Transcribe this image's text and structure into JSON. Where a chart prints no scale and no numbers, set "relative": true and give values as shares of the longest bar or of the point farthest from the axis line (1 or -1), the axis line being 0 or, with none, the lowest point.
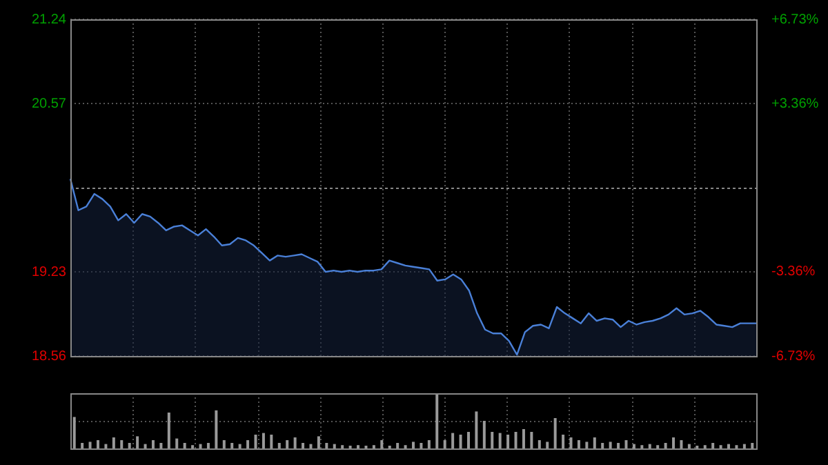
{
  "chart_data": [
    {
      "type": "area",
      "categories": [
        null,
        null,
        null,
        null,
        null,
        null,
        null,
        null,
        null,
        null,
        null,
        null,
        null,
        null,
        null,
        null,
        null,
        null,
        null,
        null,
        null,
        null,
        null,
        null,
        null,
        null,
        null,
        null,
        null,
        null,
        null,
        null,
        null,
        null,
        null,
        null,
        null,
        null,
        null,
        null,
        null,
        null,
        null,
        null,
        null,
        null,
        null,
        null,
        null,
        null,
        null,
        null,
        null,
        null,
        null,
        null,
        null,
        null,
        null,
        null,
        null,
        null,
        null,
        null,
        null,
        null,
        null,
        null,
        null,
        null,
        null,
        null,
        null,
        null,
        null,
        null,
        null,
        null,
        null,
        null,
        null,
        null,
        null,
        null,
        null,
        null,
        null
      ],
      "series": [
        {
          "color": "#4a80d8",
          "values": [
            19.97,
            19.72,
            19.75,
            19.85,
            19.81,
            19.75,
            19.64,
            19.69,
            19.62,
            19.69,
            19.67,
            19.62,
            19.56,
            19.59,
            19.6,
            19.56,
            19.52,
            19.57,
            19.51,
            19.44,
            19.45,
            19.5,
            19.48,
            19.44,
            19.38,
            19.32,
            19.36,
            19.35,
            19.36,
            19.37,
            19.34,
            19.31,
            19.23,
            19.24,
            19.23,
            19.24,
            19.23,
            19.24,
            19.24,
            19.25,
            19.32,
            19.3,
            19.28,
            19.27,
            19.26,
            19.25,
            19.16,
            19.17,
            19.21,
            19.17,
            19.08,
            18.9,
            18.77,
            18.74,
            18.74,
            18.68,
            18.57,
            18.75,
            18.8,
            18.81,
            18.78,
            18.95,
            18.9,
            18.86,
            18.82,
            18.9,
            18.84,
            18.86,
            18.85,
            18.79,
            18.84,
            18.81,
            18.83,
            18.84,
            18.86,
            18.89,
            18.94,
            18.89,
            18.9,
            18.92,
            18.87,
            18.81,
            18.8,
            18.79,
            18.82,
            18.82,
            18.82
          ]
        }
      ],
      "ylim": [
        18.56,
        21.24
      ],
      "yticks": [
        18.56,
        19.23,
        20.57,
        21.24
      ],
      "y2lim": [
        -6.73,
        6.73
      ],
      "y2ticks": [
        {
          "value": -6.73,
          "label": "-6.73%"
        },
        {
          "value": -3.36,
          "label": "-3.36%"
        },
        {
          "value": 3.36,
          "label": "+3.36%"
        },
        {
          "value": 6.73,
          "label": "+6.73%"
        }
      ],
      "ref_lines": [
        {
          "axis": "y",
          "value": 19.9
        }
      ],
      "grid": true,
      "tick_labels": "y"
    },
    {
      "type": "bar",
      "relative": true,
      "categories": [
        null,
        null,
        null,
        null,
        null,
        null,
        null,
        null,
        null,
        null,
        null,
        null,
        null,
        null,
        null,
        null,
        null,
        null,
        null,
        null,
        null,
        null,
        null,
        null,
        null,
        null,
        null,
        null,
        null,
        null,
        null,
        null,
        null,
        null,
        null,
        null,
        null,
        null,
        null,
        null,
        null,
        null,
        null,
        null,
        null,
        null,
        null,
        null,
        null,
        null,
        null,
        null,
        null,
        null,
        null,
        null,
        null,
        null,
        null,
        null,
        null,
        null,
        null,
        null,
        null,
        null,
        null,
        null,
        null,
        null,
        null,
        null,
        null,
        null,
        null,
        null,
        null,
        null,
        null,
        null,
        null,
        null,
        null,
        null,
        null,
        null,
        null
      ],
      "series": [
        {
          "color": "#9a9a9a",
          "values": [
            0.57,
            0.1,
            0.12,
            0.15,
            0.08,
            0.2,
            0.15,
            0.1,
            0.22,
            0.08,
            0.15,
            0.1,
            0.65,
            0.18,
            0.1,
            0.06,
            0.08,
            0.1,
            0.69,
            0.15,
            0.1,
            0.08,
            0.15,
            0.25,
            0.28,
            0.25,
            0.1,
            0.15,
            0.2,
            0.1,
            0.08,
            0.22,
            0.1,
            0.08,
            0.06,
            0.05,
            0.06,
            0.05,
            0.06,
            0.15,
            0.05,
            0.1,
            0.06,
            0.12,
            0.1,
            0.15,
            1.0,
            0.15,
            0.28,
            0.25,
            0.3,
            0.67,
            0.5,
            0.3,
            0.28,
            0.25,
            0.3,
            0.35,
            0.3,
            0.15,
            0.12,
            0.55,
            0.25,
            0.2,
            0.15,
            0.12,
            0.2,
            0.1,
            0.12,
            0.1,
            0.15,
            0.08,
            0.06,
            0.08,
            0.06,
            0.1,
            0.2,
            0.15,
            0.08,
            0.05,
            0.06,
            0.1,
            0.06,
            0.08,
            0.06,
            0.08,
            0.1
          ]
        }
      ],
      "grid": true,
      "tick_labels": false
    }
  ]
}
